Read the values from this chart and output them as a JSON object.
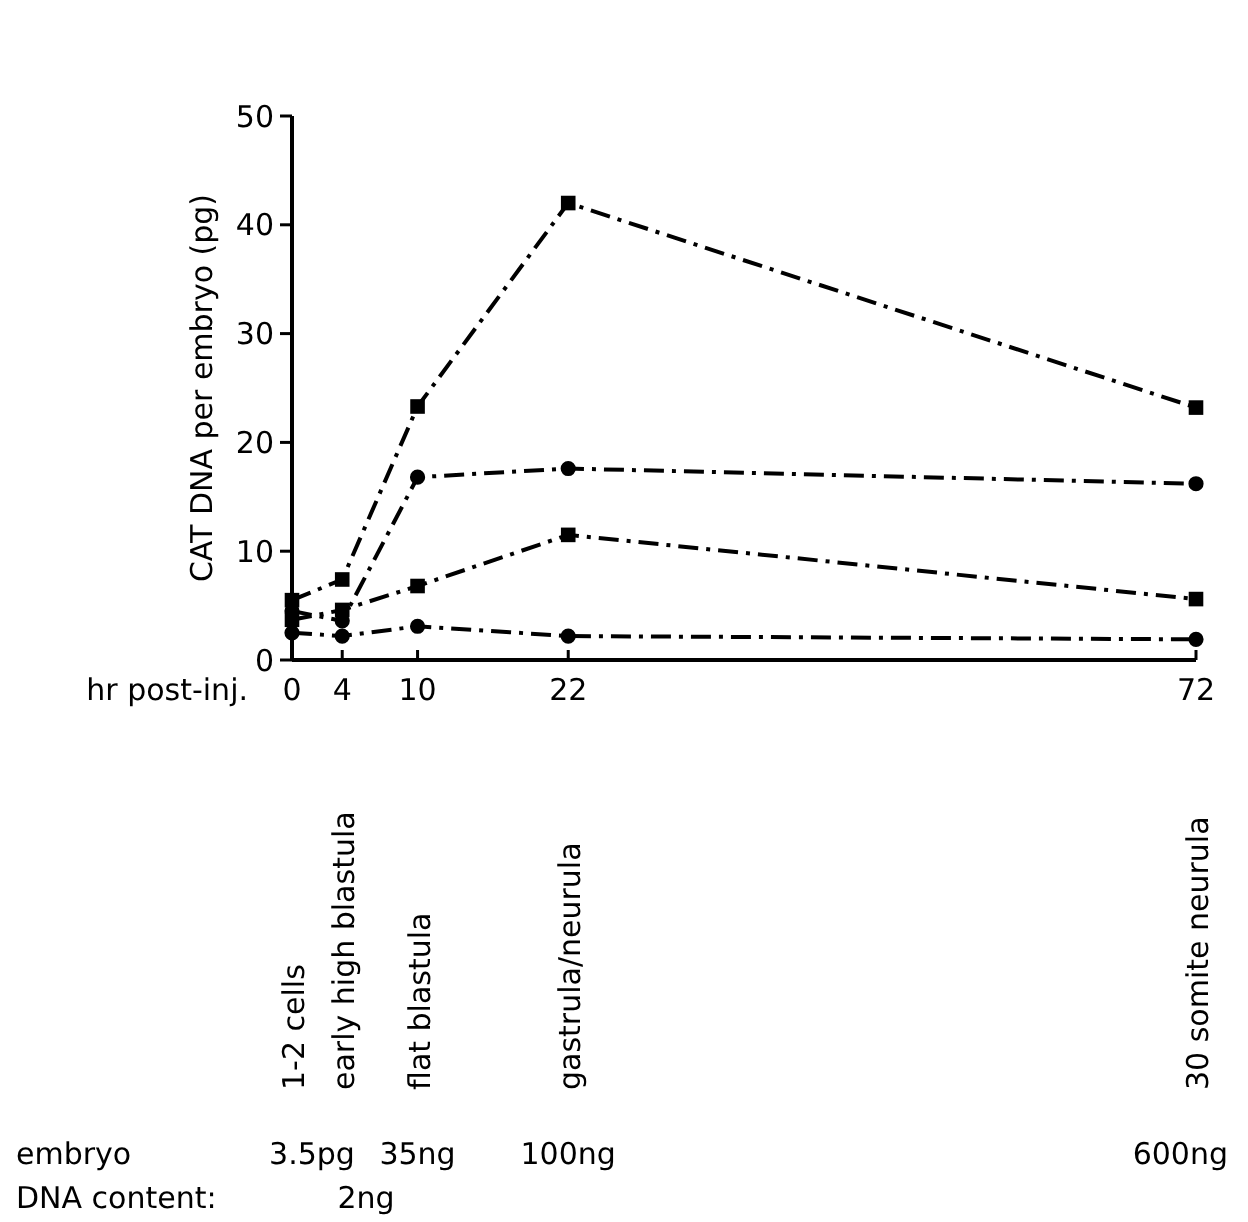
{
  "chart_data": {
    "type": "line",
    "ylabel": "CAT DNA per embryo (pg)",
    "xlabel": "hr post-inj.",
    "x": [
      0,
      4,
      10,
      22,
      72
    ],
    "xlim": [
      0,
      72
    ],
    "xticks": [
      0,
      4,
      10,
      22,
      72
    ],
    "ylim": [
      0,
      50
    ],
    "yticks": [
      0,
      10,
      20,
      30,
      40,
      50
    ],
    "line_style": "dashed",
    "series": [
      {
        "color": "#000000",
        "marker": "square",
        "values": [
          5.5,
          7.4,
          23.3,
          42,
          23.2
        ]
      },
      {
        "color": "#000000",
        "marker": "circle",
        "values": [
          4.5,
          3.6,
          16.8,
          17.6,
          16.2
        ]
      },
      {
        "color": "#000000",
        "marker": "square",
        "values": [
          3.7,
          4.6,
          6.8,
          11.5,
          5.6
        ]
      },
      {
        "color": "#000000",
        "marker": "circle",
        "values": [
          2.5,
          2.2,
          3.1,
          2.2,
          1.9
        ]
      }
    ],
    "annotations": [
      "1-2 cells",
      "early high blastula",
      "flat blastula",
      "gastrula/neurula",
      "30 somite neurula",
      "embryo",
      "DNA content:",
      "3.5pg",
      "35ng",
      "100ng",
      "600ng",
      "2ng"
    ]
  }
}
